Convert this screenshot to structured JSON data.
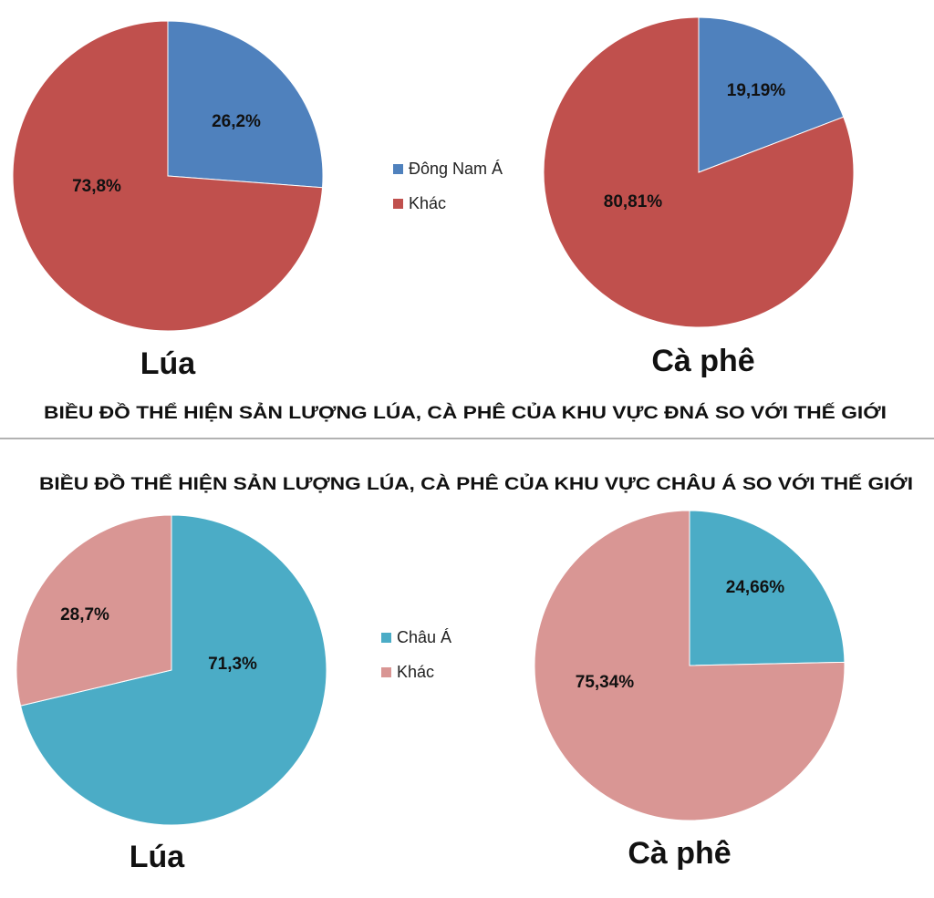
{
  "chart_data": [
    {
      "type": "pie",
      "title": "",
      "caption": "Lúa",
      "slices": [
        {
          "name": "Đông Nam Á",
          "value": 26.2,
          "label": "26,2%",
          "color": "#4F81BD"
        },
        {
          "name": "Khác",
          "value": 73.8,
          "label": "73,8%",
          "color": "#C0504D"
        }
      ]
    },
    {
      "type": "pie",
      "title": "",
      "caption": "Cà phê",
      "slices": [
        {
          "name": "Đông Nam Á",
          "value": 19.19,
          "label": "19,19%",
          "color": "#4F81BD"
        },
        {
          "name": "Khác",
          "value": 80.81,
          "label": "80,81%",
          "color": "#C0504D"
        }
      ]
    },
    {
      "type": "pie",
      "title": "",
      "caption": "Lúa",
      "slices": [
        {
          "name": "Châu Á",
          "value": 71.3,
          "label": "71,3%",
          "color": "#4BACC6"
        },
        {
          "name": "Khác",
          "value": 28.7,
          "label": "28,7%",
          "color": "#D99694"
        }
      ]
    },
    {
      "type": "pie",
      "title": "",
      "caption": "Cà phê",
      "slices": [
        {
          "name": "Châu Á",
          "value": 24.66,
          "label": "24,66%",
          "color": "#4BACC6"
        },
        {
          "name": "Khác",
          "value": 75.34,
          "label": "75,34%",
          "color": "#D99694"
        }
      ]
    }
  ],
  "legends": [
    {
      "items": [
        {
          "label": "Đông Nam Á",
          "color": "#4F81BD"
        },
        {
          "label": "Khác",
          "color": "#C0504D"
        }
      ]
    },
    {
      "items": [
        {
          "label": "Châu Á",
          "color": "#4BACC6"
        },
        {
          "label": "Khác",
          "color": "#D99694"
        }
      ]
    }
  ],
  "headings": {
    "top": "BIỀU ĐỒ THỂ HIỆN SẢN LƯỢNG LÚA, CÀ PHÊ CỦA KHU VỰC ĐNÁ SO VỚI THẾ GIỚI",
    "bottom": "BIỀU ĐỒ THỂ HIỆN SẢN LƯỢNG LÚA, CÀ PHÊ CỦA KHU VỰC CHÂU Á SO VỚI THẾ GIỚI"
  },
  "divider_color": "#999999"
}
